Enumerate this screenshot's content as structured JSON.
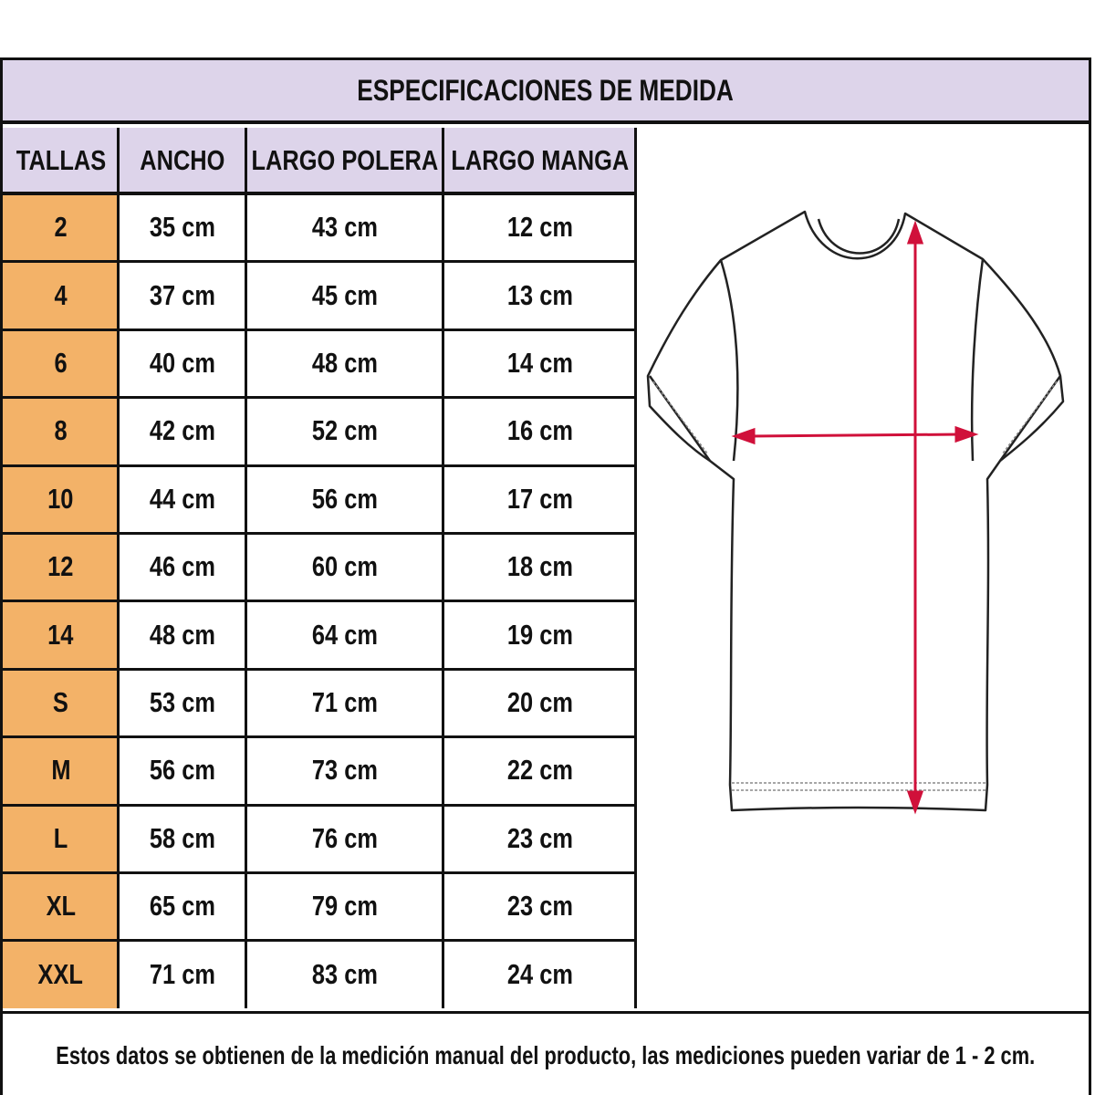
{
  "title": "ESPECIFICACIONES DE MEDIDA",
  "columns": [
    "TALLAS",
    "ANCHO",
    "LARGO POLERA",
    "LARGO MANGA"
  ],
  "rows": [
    [
      "2",
      "35 cm",
      "43 cm",
      "12 cm"
    ],
    [
      "4",
      "37 cm",
      "45 cm",
      "13 cm"
    ],
    [
      "6",
      "40 cm",
      "48 cm",
      "14 cm"
    ],
    [
      "8",
      "42 cm",
      "52 cm",
      "16 cm"
    ],
    [
      "10",
      "44 cm",
      "56 cm",
      "17 cm"
    ],
    [
      "12",
      "46 cm",
      "60 cm",
      "18 cm"
    ],
    [
      "14",
      "48 cm",
      "64 cm",
      "19 cm"
    ],
    [
      "S",
      "53 cm",
      "71 cm",
      "20 cm"
    ],
    [
      "M",
      "56 cm",
      "73 cm",
      "22 cm"
    ],
    [
      "L",
      "58 cm",
      "76 cm",
      "23 cm"
    ],
    [
      "XL",
      "65 cm",
      "79 cm",
      "23 cm"
    ],
    [
      "XXL",
      "71 cm",
      "83 cm",
      "24 cm"
    ]
  ],
  "footer": "Estos datos se obtienen de la medición manual del producto, las mediciones pueden variar de 1 - 2 cm.",
  "colors": {
    "header_bg": "#ddd4ea",
    "size_bg": "#f3b268",
    "arrow": "#d0103a"
  },
  "illustration": "tshirt-measurement-diagram"
}
